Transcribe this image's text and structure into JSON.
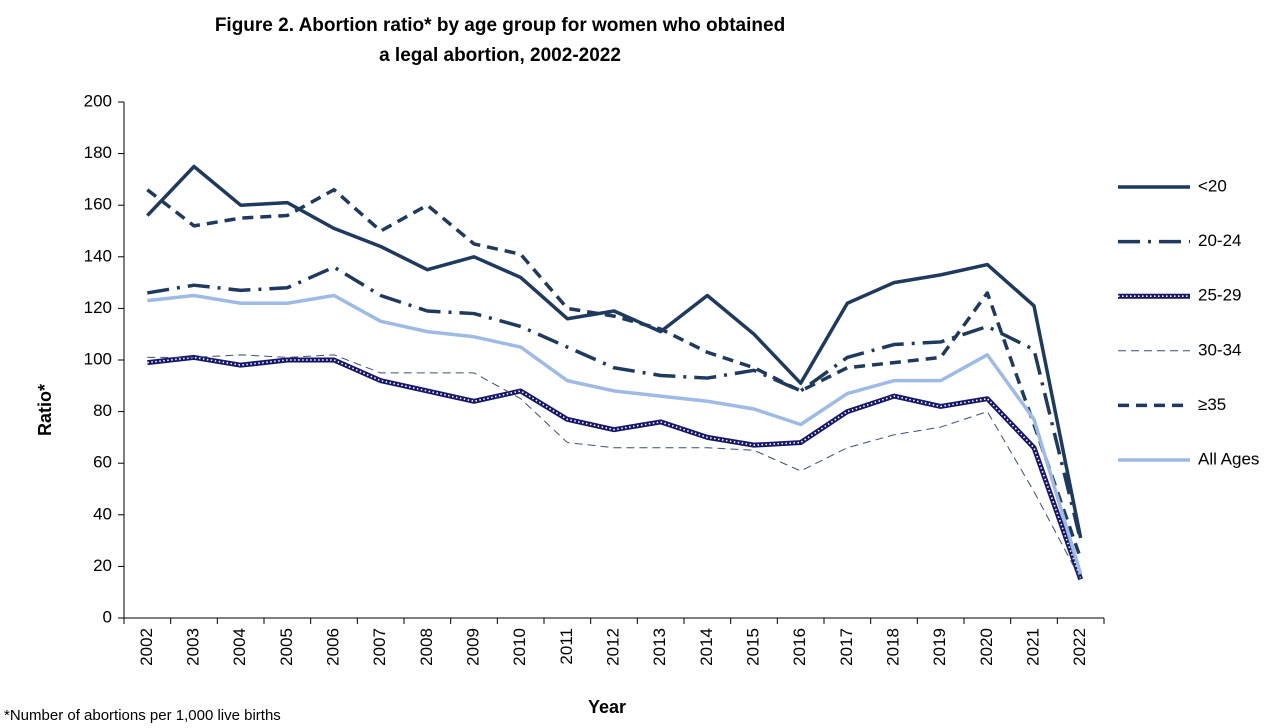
{
  "chart_data": {
    "type": "line",
    "title": [
      "Figure 2. Abortion ratio* by age group for women who obtained",
      "a legal abortion, 2002-2022"
    ],
    "x_label": "Year",
    "y_label": "Ratio*",
    "footnote": "*Number of abortions per 1,000 live births",
    "categories": [
      "2002",
      "2003",
      "2004",
      "2005",
      "2006",
      "2007",
      "2008",
      "2009",
      "2010",
      "2011",
      "2012",
      "2013",
      "2014",
      "2015",
      "2016",
      "2017",
      "2018",
      "2019",
      "2020",
      "2021",
      "2022"
    ],
    "ylim": [
      0,
      200
    ],
    "yticks": [
      0,
      20,
      40,
      60,
      80,
      100,
      120,
      140,
      160,
      180,
      200
    ],
    "grid": false,
    "legend": "right",
    "series": [
      {
        "name": "<20",
        "color": "#1f3a5f",
        "style": "solid",
        "values": [
          156,
          175,
          160,
          161,
          151,
          144,
          135,
          140,
          132,
          116,
          119,
          111,
          125,
          110,
          91,
          122,
          130,
          133,
          137,
          121,
          31
        ]
      },
      {
        "name": "20-24",
        "color": "#1f3a5f",
        "style": "dashdot",
        "values": [
          126,
          129,
          127,
          128,
          136,
          125,
          119,
          118,
          113,
          105,
          97,
          94,
          93,
          96,
          88,
          101,
          106,
          107,
          113,
          104,
          30
        ]
      },
      {
        "name": "25-29",
        "color": "#16166b",
        "style": "dotted",
        "values": [
          99,
          101,
          98,
          100,
          100,
          92,
          88,
          84,
          88,
          77,
          73,
          76,
          70,
          67,
          68,
          80,
          86,
          82,
          85,
          66,
          15
        ]
      },
      {
        "name": "30-34",
        "color": "#3b4f78",
        "style": "thindash",
        "values": [
          101,
          101,
          102,
          101,
          102,
          95,
          95,
          95,
          85,
          68,
          66,
          66,
          66,
          65,
          57,
          66,
          71,
          74,
          80,
          49,
          15
        ]
      },
      {
        "name": "≥35",
        "color": "#1f3a5f",
        "style": "dashed",
        "values": [
          166,
          152,
          155,
          156,
          166,
          150,
          160,
          145,
          141,
          120,
          117,
          112,
          103,
          97,
          88,
          97,
          99,
          101,
          126,
          75,
          23
        ]
      },
      {
        "name": "All Ages",
        "color": "#9dbbe6",
        "style": "solid",
        "values": [
          123,
          125,
          122,
          122,
          125,
          115,
          111,
          109,
          105,
          92,
          88,
          86,
          84,
          81,
          75,
          87,
          92,
          92,
          102,
          77,
          17
        ]
      }
    ]
  }
}
